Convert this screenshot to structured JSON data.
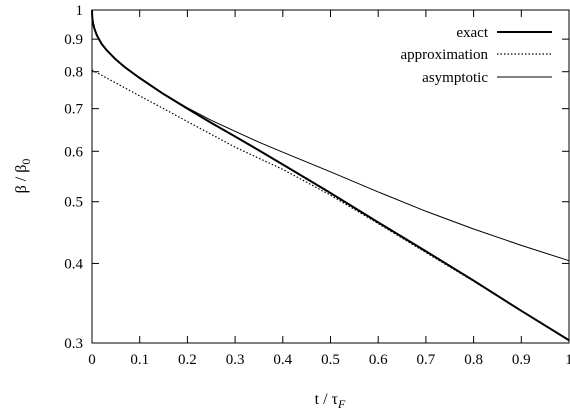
{
  "chart_data": {
    "type": "line",
    "xlabel_main": "t / τ",
    "xlabel_sub": "F",
    "ylabel_main": "β / β",
    "ylabel_sub": "0",
    "xlim": [
      0,
      1
    ],
    "ylim": [
      0.3,
      1
    ],
    "yscale": "log",
    "grid": false,
    "legend_position": "top-right",
    "x_ticks": [
      0,
      0.1,
      0.2,
      0.3,
      0.4,
      0.5,
      0.6,
      0.7,
      0.8,
      0.9,
      1
    ],
    "x_tick_labels": [
      "0",
      "0.1",
      "0.2",
      "0.3",
      "0.4",
      "0.5",
      "0.6",
      "0.7",
      "0.8",
      "0.9",
      "1"
    ],
    "y_ticks": [
      0.3,
      0.4,
      0.5,
      0.6,
      0.7,
      0.8,
      0.9,
      1
    ],
    "y_tick_labels": [
      "0.3",
      "0.4",
      "0.5",
      "0.6",
      "0.7",
      "0.8",
      "0.9",
      "1"
    ],
    "series": [
      {
        "name": "exact",
        "style": "solid-thick",
        "color": "#000000",
        "x": [
          0,
          0.0005,
          0.002,
          0.005,
          0.01,
          0.02,
          0.03,
          0.05,
          0.07,
          0.1,
          0.15,
          0.2,
          0.25,
          0.3,
          0.35,
          0.4,
          0.5,
          0.6,
          0.7,
          0.8,
          0.9,
          1.0
        ],
        "y": [
          1.0,
          0.975,
          0.955,
          0.935,
          0.913,
          0.885,
          0.866,
          0.836,
          0.812,
          0.782,
          0.738,
          0.7,
          0.665,
          0.633,
          0.602,
          0.572,
          0.516,
          0.464,
          0.418,
          0.376,
          0.337,
          0.303
        ]
      },
      {
        "name": "approximation",
        "style": "dotted",
        "color": "#000000",
        "x": [
          0,
          0.05,
          0.1,
          0.15,
          0.2,
          0.25,
          0.3,
          0.35,
          0.4,
          0.5,
          0.6,
          0.7,
          0.8,
          0.9,
          1.0
        ],
        "y": [
          0.805,
          0.768,
          0.733,
          0.7,
          0.668,
          0.638,
          0.609,
          0.585,
          0.562,
          0.512,
          0.462,
          0.416,
          0.375,
          0.337,
          0.303
        ]
      },
      {
        "name": "asymptotic",
        "style": "solid-thin",
        "color": "#000000",
        "x": [
          0,
          0.0005,
          0.002,
          0.005,
          0.01,
          0.02,
          0.03,
          0.05,
          0.07,
          0.1,
          0.15,
          0.2,
          0.25,
          0.3,
          0.35,
          0.4,
          0.5,
          0.6,
          0.7,
          0.8,
          0.9,
          1.0
        ],
        "y": [
          1.0,
          0.975,
          0.955,
          0.935,
          0.913,
          0.885,
          0.866,
          0.836,
          0.812,
          0.782,
          0.738,
          0.702,
          0.671,
          0.645,
          0.62,
          0.598,
          0.557,
          0.518,
          0.483,
          0.453,
          0.427,
          0.404
        ]
      }
    ]
  }
}
